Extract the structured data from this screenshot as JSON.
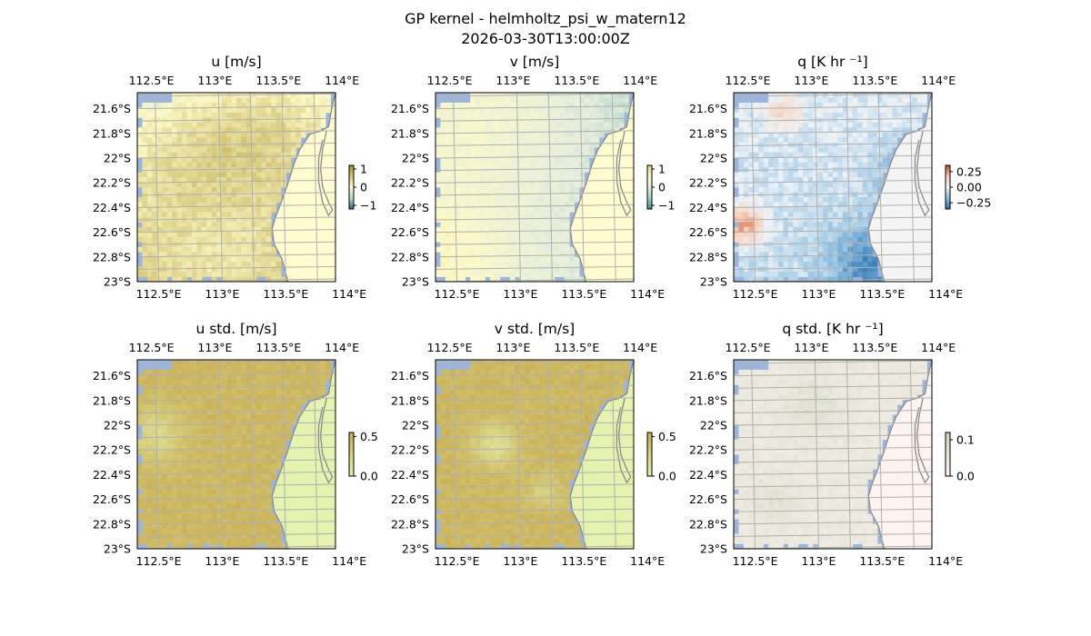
{
  "figure": {
    "title_line1": "GP kernel - helmholtz_psi_w_matern12",
    "title_line2": "2026-03-30T13:00:00Z"
  },
  "map": {
    "lon_ticks": [
      "112.5°E",
      "113°E",
      "113.5°E",
      "114°E"
    ],
    "lon_values": [
      112.5,
      113.0,
      113.5,
      114.0
    ],
    "lat_ticks": [
      "21.6°S",
      "21.8°S",
      "22°S",
      "22.2°S",
      "22.4°S",
      "22.6°S",
      "22.8°S",
      "23°S"
    ],
    "lat_values": [
      -21.6,
      -21.8,
      -22.0,
      -22.2,
      -22.4,
      -22.6,
      -22.8,
      -23.0
    ],
    "lon_range": [
      112.36,
      113.92
    ],
    "lat_range": [
      -23.0,
      -21.47
    ],
    "colors": {
      "ocean": "#9db5dc",
      "grid": "#b0b0b0",
      "coast": "#8a8a8a"
    }
  },
  "chart_data": [
    {
      "type": "heatmap",
      "title": "u [m/s]",
      "variable": "u",
      "colorbar": {
        "ticks": [
          "1",
          "0",
          "−1"
        ],
        "tick_values": [
          1,
          0,
          -1
        ],
        "range": [
          -1.2,
          1.2
        ]
      },
      "colormap": [
        "#2e6b6e",
        "#bcd9d3",
        "#fdfac8",
        "#d6c77a",
        "#9a9a12"
      ],
      "land_color": "#fffdd0",
      "field": {
        "base": 0.1,
        "dx": 0.05,
        "dy": 0.8,
        "bumps": [
          [
            0.65,
            0.15,
            0.45,
            0.25
          ],
          [
            0.3,
            0.35,
            0.35,
            0.3
          ],
          [
            0.4,
            0.9,
            -0.25,
            0.2
          ]
        ],
        "noise": 0.16
      }
    },
    {
      "type": "heatmap",
      "title": "v [m/s]",
      "variable": "v",
      "colorbar": {
        "ticks": [
          "1",
          "0",
          "−1"
        ],
        "tick_values": [
          1,
          0,
          -1
        ],
        "range": [
          -1.2,
          1.2
        ]
      },
      "colormap": [
        "#3f8d8c",
        "#a9cfc8",
        "#e6eedd",
        "#fdfac8",
        "#e2cf8e"
      ],
      "land_color": "#fffdd0",
      "field": {
        "base": 0.05,
        "dx": -0.55,
        "dy": 0.05,
        "bumps": [
          [
            0.1,
            0.85,
            0.3,
            0.2
          ],
          [
            0.35,
            0.2,
            0.2,
            0.25
          ]
        ],
        "noise": 0.14
      }
    },
    {
      "type": "heatmap",
      "title": "q [K hr ⁻¹]",
      "variable": "q",
      "colorbar": {
        "ticks": [
          "0.25",
          "0.00",
          "−0.25"
        ],
        "tick_values": [
          0.25,
          0.0,
          -0.25
        ],
        "range": [
          -0.35,
          0.35
        ]
      },
      "colormap": [
        "#2a72b0",
        "#8cbde0",
        "#eef3f8",
        "#f8cdb6",
        "#c9422d"
      ],
      "land_color": "#f4f4f4",
      "field": {
        "base": -0.05,
        "dx": 0.0,
        "dy": -0.05,
        "bumps": [
          [
            0.05,
            0.7,
            0.3,
            0.07
          ],
          [
            0.7,
            0.9,
            -0.22,
            0.15
          ],
          [
            0.9,
            0.45,
            -0.18,
            0.12
          ],
          [
            0.25,
            0.1,
            0.15,
            0.06
          ]
        ],
        "noise": 0.05
      }
    },
    {
      "type": "heatmap",
      "title": "u std. [m/s]",
      "variable": "u std.",
      "colorbar": {
        "ticks": [
          "0.5",
          "0.0"
        ],
        "tick_values": [
          0.5,
          0.0
        ],
        "range": [
          0.0,
          0.55
        ]
      },
      "colormap": [
        "#e5f2b0",
        "#c9ad52"
      ],
      "land_color": "#e5f2b0",
      "field": {
        "base": 0.46,
        "dx": 0.0,
        "dy": 0.0,
        "bumps": [
          [
            0.1,
            0.4,
            -0.25,
            0.1
          ]
        ],
        "noise": 0.05
      }
    },
    {
      "type": "heatmap",
      "title": "v std. [m/s]",
      "variable": "v std.",
      "colorbar": {
        "ticks": [
          "0.5",
          "0.0"
        ],
        "tick_values": [
          0.5,
          0.0
        ],
        "range": [
          0.0,
          0.55
        ]
      },
      "colormap": [
        "#e5f2b0",
        "#c9ad52"
      ],
      "land_color": "#e5f2b0",
      "field": {
        "base": 0.46,
        "dx": 0.0,
        "dy": 0.0,
        "bumps": [
          [
            0.3,
            0.45,
            -0.3,
            0.08
          ],
          [
            0.55,
            0.7,
            -0.2,
            0.06
          ]
        ],
        "noise": 0.05
      }
    },
    {
      "type": "heatmap",
      "title": "q std. [K hr ⁻¹]",
      "variable": "q std.",
      "colorbar": {
        "ticks": [
          "0.1",
          "0.0"
        ],
        "tick_values": [
          0.1,
          0.0
        ],
        "range": [
          0.0,
          0.12
        ]
      },
      "colormap": [
        "#fdf3f0",
        "#e7e6da",
        "#c9d2b7"
      ],
      "land_color": "#fdf3f0",
      "field": {
        "base": 0.045,
        "dx": 0.0,
        "dy": 0.0,
        "bumps": [
          [
            0.4,
            0.25,
            0.03,
            0.1
          ],
          [
            0.2,
            0.75,
            0.03,
            0.08
          ]
        ],
        "noise": 0.012
      }
    }
  ]
}
